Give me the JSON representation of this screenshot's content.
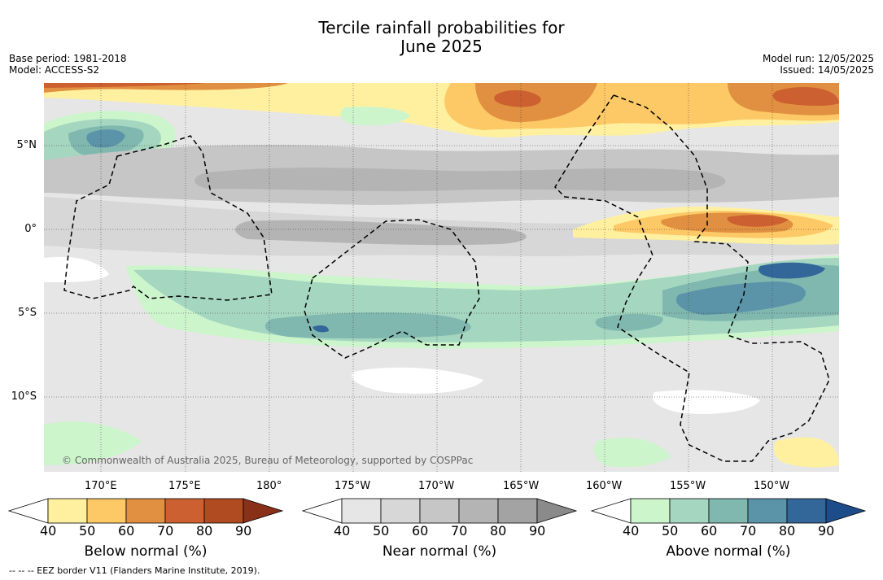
{
  "header": {
    "title_line1": "Tercile rainfall probabilities for",
    "title_line2": "June 2025",
    "base_period": "Base period: 1981-2018",
    "model": "Model: ACCESS-S2",
    "model_run": "Model run: 12/05/2025",
    "issued": "Issued: 14/05/2025"
  },
  "map": {
    "lat_ticks": [
      "5°N",
      "0°",
      "5°S",
      "10°S"
    ],
    "lon_ticks": [
      "170°E",
      "175°E",
      "180°",
      "175°W",
      "170°W",
      "165°W",
      "160°W",
      "155°W",
      "150°W"
    ],
    "copyright": "© Commonwealth of Australia 2025, Bureau of Meteorology, supported by COSPPac"
  },
  "colorbars": [
    {
      "title": "Below normal (%)",
      "labels": [
        "40",
        "50",
        "60",
        "70",
        "80",
        "90"
      ],
      "colors": [
        "#fff0a0",
        "#fdc866",
        "#e09040",
        "#cc6030",
        "#b04a20",
        "#8a3018"
      ]
    },
    {
      "title": "Near normal (%)",
      "labels": [
        "40",
        "50",
        "60",
        "70",
        "80",
        "90"
      ],
      "colors": [
        "#e6e6e6",
        "#d7d7d7",
        "#c6c6c6",
        "#b4b4b4",
        "#a3a3a3",
        "#8a8a8a"
      ]
    },
    {
      "title": "Above normal (%)",
      "labels": [
        "40",
        "50",
        "60",
        "70",
        "80",
        "90"
      ],
      "colors": [
        "#ccf5cc",
        "#a4d6c0",
        "#80b8b0",
        "#5b94a8",
        "#336699",
        "#1c4d8a"
      ]
    }
  ],
  "legend": {
    "eez": "--  --  -- EEZ border V11 (Flanders Marine Institute, 2019)."
  }
}
